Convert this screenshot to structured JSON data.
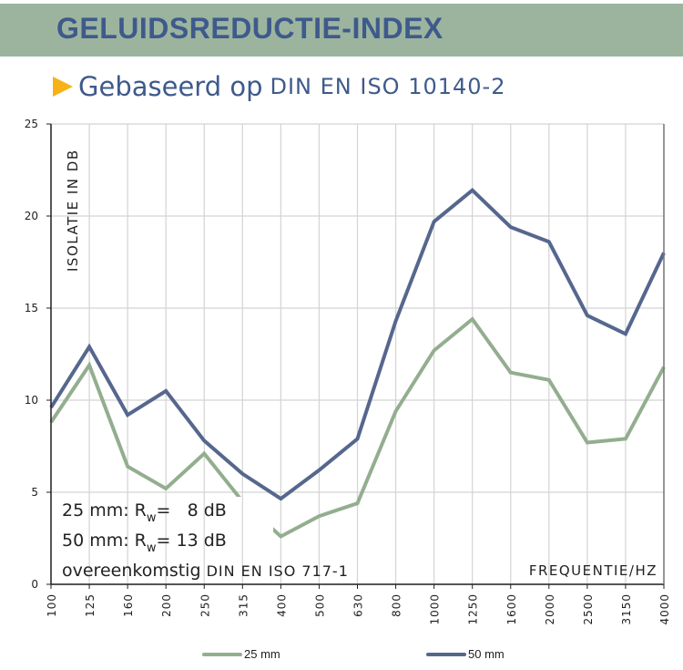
{
  "header": {
    "title": "GELUIDSREDUCTIE-INDEX",
    "subtitle_prefix": "Gebaseerd op",
    "subtitle_standard": "DIN EN ISO 10140-2"
  },
  "colors": {
    "band": "#9CB49E",
    "title": "#3E5A8C",
    "arrow": "#F7B218",
    "series_25": "#93AE8F",
    "series_50": "#56678E"
  },
  "chart_data": {
    "type": "line",
    "ylabel": "ISOLATIE IN DB",
    "xlabel": "FREQUENTIE/HZ",
    "ylim": [
      0,
      25
    ],
    "yticks": [
      "0",
      "5",
      "10",
      "15",
      "20",
      "25"
    ],
    "categories": [
      "100",
      "125",
      "160",
      "200",
      "250",
      "315",
      "400",
      "500",
      "630",
      "800",
      "1000",
      "1250",
      "1600",
      "2000",
      "2500",
      "3150",
      "4000"
    ],
    "series": [
      {
        "name": "25 mm",
        "values": [
          8.8,
          11.9,
          6.4,
          5.2,
          7.1,
          4.5,
          2.6,
          3.7,
          4.4,
          9.4,
          12.7,
          14.4,
          11.5,
          11.1,
          7.7,
          7.9,
          11.8
        ]
      },
      {
        "name": "50 mm",
        "values": [
          9.6,
          12.9,
          9.2,
          10.5,
          7.8,
          6.0,
          4.65,
          6.2,
          7.9,
          14.3,
          19.7,
          21.4,
          19.4,
          18.6,
          14.6,
          13.6,
          18.0
        ]
      }
    ],
    "grid": true,
    "legend": "bottom",
    "annotations": {
      "line1_prefix": "25 mm: R",
      "line1_suffix": "=   8 dB",
      "line2_prefix": "50 mm: R",
      "line2_suffix": "= 13 dB",
      "sub": "w",
      "line3_prefix": "overeenkomstig",
      "line3_standard": "DIN EN ISO 717-1"
    }
  }
}
